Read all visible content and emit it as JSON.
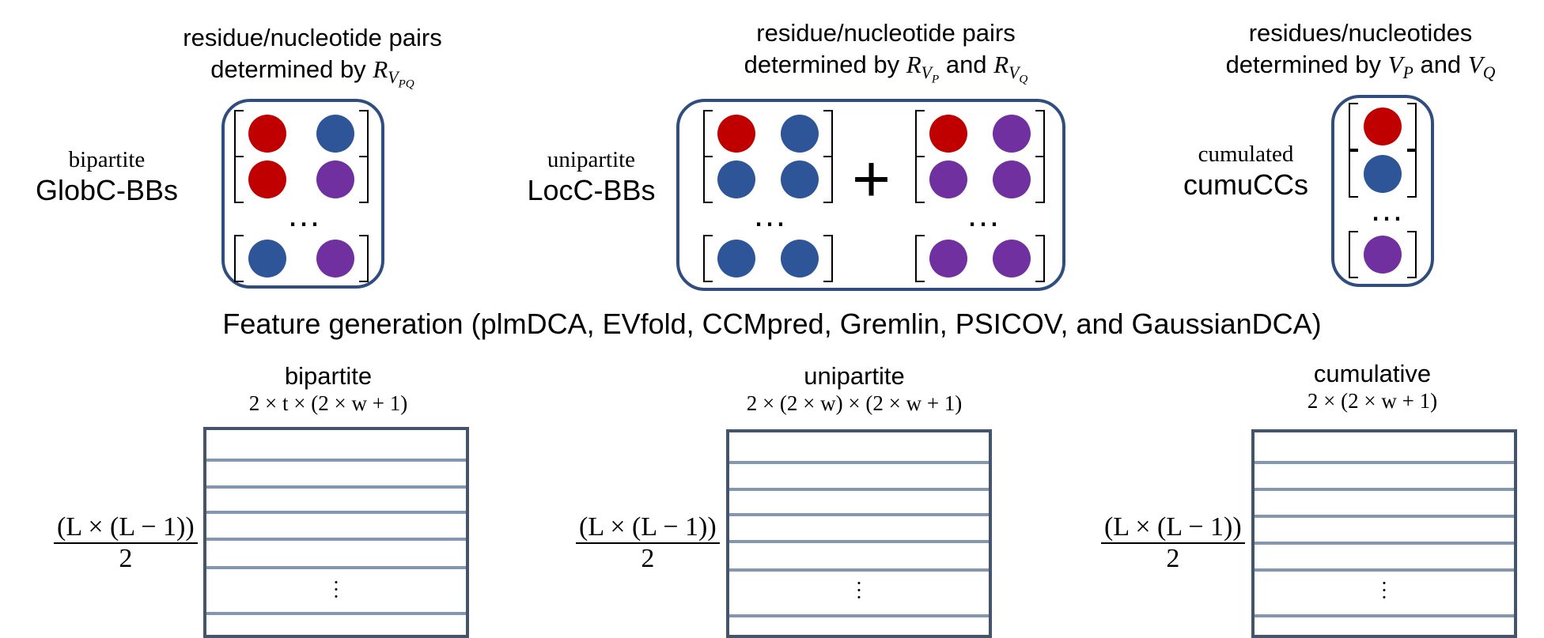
{
  "panels": {
    "globc": {
      "header_line1": "residue/nucleotide pairs",
      "header_line2": "determined by",
      "sub_symbol": "R",
      "sub_sub": "V",
      "sub_subsub": "PQ",
      "label_small": "bipartite",
      "label_big": "GlobC-BBs"
    },
    "locc": {
      "header_line1": "residue/nucleotide pairs",
      "header_line2": "determined by",
      "and_text": "and",
      "r_symbol": "R",
      "v_symbol": "V",
      "p_sub": "P",
      "q_sub": "Q",
      "label_small": "unipartite",
      "label_big": "LocC-BBs",
      "plus": "+"
    },
    "cumu": {
      "header_line1": "residues/nucleotides",
      "header_line2": "determined by",
      "and_text": "and",
      "v_symbol": "V",
      "p_sub": "P",
      "q_sub": "Q",
      "label_small": "cumulated",
      "label_big": "cumuCCs"
    },
    "ellipsis": "…"
  },
  "feature_generation": "Feature generation (plmDCA, EVfold, CCMpred, Gremlin, PSICOV, and GaussianDCA)",
  "matrices": {
    "bipartite": {
      "title": "bipartite",
      "dims": "2 × t × (2 × w + 1)"
    },
    "unipartite": {
      "title": "unipartite",
      "dims": "2 × (2 × w) × (2 × w + 1)"
    },
    "cumulative": {
      "title": "cumulative",
      "dims": "2 × (2 × w + 1)"
    },
    "row_numerator": "(L × (L − 1))",
    "row_denominator": "2",
    "vdots": "⋮"
  },
  "colors": {
    "red": "#c00000",
    "blue": "#2e5597",
    "purple": "#7030a0",
    "box_border": "#2f4e7f",
    "matrix_border": "#44546a",
    "matrix_line": "#8497b0"
  }
}
